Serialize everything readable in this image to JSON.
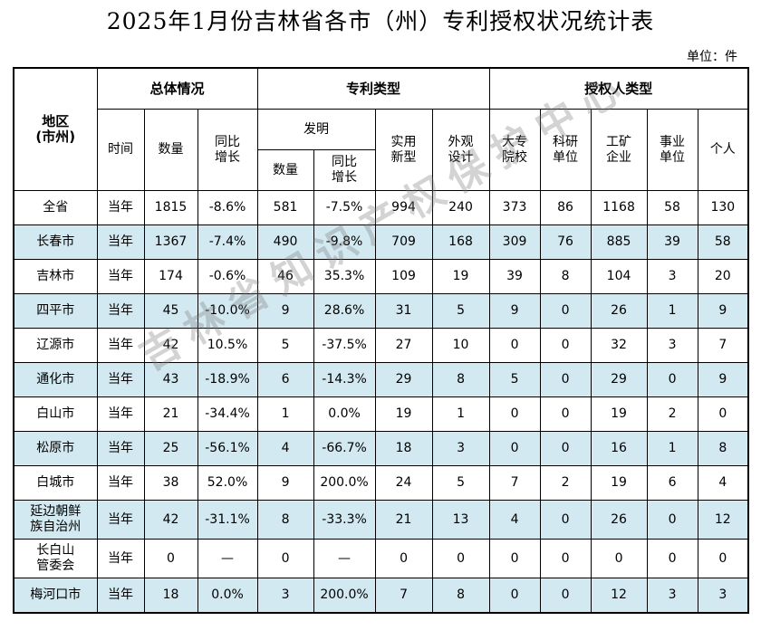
{
  "title": "2025年1月份吉林省各市（州）专利授权状况统计表",
  "unit": "单位：件",
  "watermark": "吉林省知识产权保护中心",
  "headers": {
    "region": "地区\n(市州)",
    "overall": "总体情况",
    "patent_type": "专利类型",
    "grantee_type": "授权人类型",
    "time": "时间",
    "quantity": "数量",
    "yoy": "同比\n增长",
    "invention": "发明",
    "inv_quantity": "数量",
    "inv_yoy": "同比\n增长",
    "utility": "实用\n新型",
    "design": "外观\n设计",
    "university": "大专\n院校",
    "research": "科研\n单位",
    "enterprise": "工矿\n企业",
    "institution": "事业\n单位",
    "individual": "个人"
  },
  "rows": [
    {
      "region": "全省",
      "time": "当年",
      "total": "1815",
      "yoy": "-8.6%",
      "inv": "581",
      "inv_yoy": "-7.5%",
      "utility": "994",
      "design": "240",
      "univ": "373",
      "research": "86",
      "enterprise": "1168",
      "institution": "58",
      "individual": "130"
    },
    {
      "region": "长春市",
      "time": "当年",
      "total": "1367",
      "yoy": "-7.4%",
      "inv": "490",
      "inv_yoy": "-9.8%",
      "utility": "709",
      "design": "168",
      "univ": "309",
      "research": "76",
      "enterprise": "885",
      "institution": "39",
      "individual": "58"
    },
    {
      "region": "吉林市",
      "time": "当年",
      "total": "174",
      "yoy": "-0.6%",
      "inv": "46",
      "inv_yoy": "35.3%",
      "utility": "109",
      "design": "19",
      "univ": "39",
      "research": "8",
      "enterprise": "104",
      "institution": "3",
      "individual": "20"
    },
    {
      "region": "四平市",
      "time": "当年",
      "total": "45",
      "yoy": "-10.0%",
      "inv": "9",
      "inv_yoy": "28.6%",
      "utility": "31",
      "design": "5",
      "univ": "9",
      "research": "0",
      "enterprise": "26",
      "institution": "1",
      "individual": "9"
    },
    {
      "region": "辽源市",
      "time": "当年",
      "total": "42",
      "yoy": "10.5%",
      "inv": "5",
      "inv_yoy": "-37.5%",
      "utility": "27",
      "design": "10",
      "univ": "0",
      "research": "0",
      "enterprise": "32",
      "institution": "3",
      "individual": "7"
    },
    {
      "region": "通化市",
      "time": "当年",
      "total": "43",
      "yoy": "-18.9%",
      "inv": "6",
      "inv_yoy": "-14.3%",
      "utility": "29",
      "design": "8",
      "univ": "5",
      "research": "0",
      "enterprise": "29",
      "institution": "0",
      "individual": "9"
    },
    {
      "region": "白山市",
      "time": "当年",
      "total": "21",
      "yoy": "-34.4%",
      "inv": "1",
      "inv_yoy": "0.0%",
      "utility": "19",
      "design": "1",
      "univ": "0",
      "research": "0",
      "enterprise": "19",
      "institution": "2",
      "individual": "0"
    },
    {
      "region": "松原市",
      "time": "当年",
      "total": "25",
      "yoy": "-56.1%",
      "inv": "4",
      "inv_yoy": "-66.7%",
      "utility": "18",
      "design": "3",
      "univ": "0",
      "research": "0",
      "enterprise": "16",
      "institution": "1",
      "individual": "8"
    },
    {
      "region": "白城市",
      "time": "当年",
      "total": "38",
      "yoy": "52.0%",
      "inv": "9",
      "inv_yoy": "200.0%",
      "utility": "24",
      "design": "5",
      "univ": "7",
      "research": "2",
      "enterprise": "19",
      "institution": "6",
      "individual": "4"
    },
    {
      "region": "延边朝鲜\n族自治州",
      "time": "当年",
      "total": "42",
      "yoy": "-31.1%",
      "inv": "8",
      "inv_yoy": "-33.3%",
      "utility": "21",
      "design": "13",
      "univ": "4",
      "research": "0",
      "enterprise": "26",
      "institution": "0",
      "individual": "12"
    },
    {
      "region": "长白山\n管委会",
      "time": "当年",
      "total": "0",
      "yoy": "—",
      "inv": "0",
      "inv_yoy": "—",
      "utility": "0",
      "design": "0",
      "univ": "0",
      "research": "0",
      "enterprise": "0",
      "institution": "0",
      "individual": "0"
    },
    {
      "region": "梅河口市",
      "time": "当年",
      "total": "18",
      "yoy": "0.0%",
      "inv": "3",
      "inv_yoy": "200.0%",
      "utility": "7",
      "design": "8",
      "univ": "0",
      "research": "0",
      "enterprise": "12",
      "institution": "3",
      "individual": "3"
    }
  ]
}
